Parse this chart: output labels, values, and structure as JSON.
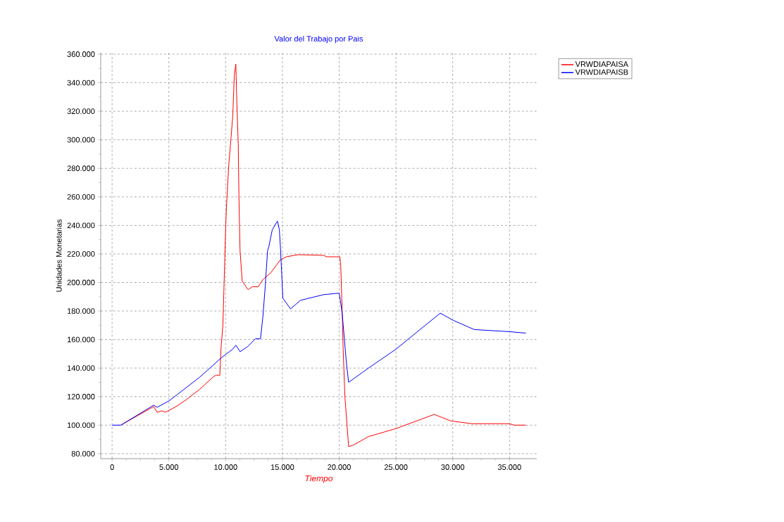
{
  "chart_data": {
    "type": "line",
    "title": "Valor del Trabajo por Pais",
    "xlabel": "Tiempo",
    "ylabel": "Unidades Monetarias",
    "xlim": [
      -1000,
      37400
    ],
    "ylim": [
      76500,
      361000
    ],
    "xticks": [
      0,
      {
        "value": 5000,
        "label": "5.000"
      },
      {
        "value": 10000,
        "label": "10.000"
      },
      {
        "value": 15000,
        "label": "15.000"
      },
      {
        "value": 20000,
        "label": "20.000"
      },
      {
        "value": 25000,
        "label": "25.000"
      },
      {
        "value": 30000,
        "label": "30.000"
      },
      {
        "value": 35000,
        "label": "35.000"
      }
    ],
    "yticks": [
      {
        "value": 80000,
        "label": "80.000"
      },
      {
        "value": 100000,
        "label": "100.000"
      },
      {
        "value": 120000,
        "label": "120.000"
      },
      {
        "value": 140000,
        "label": "140.000"
      },
      {
        "value": 160000,
        "label": "160.000"
      },
      {
        "value": 180000,
        "label": "180.000"
      },
      {
        "value": 200000,
        "label": "200.000"
      },
      {
        "value": 220000,
        "label": "220.000"
      },
      {
        "value": 240000,
        "label": "240.000"
      },
      {
        "value": 260000,
        "label": "260.000"
      },
      {
        "value": 280000,
        "label": "280.000"
      },
      {
        "value": 300000,
        "label": "300.000"
      },
      {
        "value": 320000,
        "label": "320.000"
      },
      {
        "value": 340000,
        "label": "340.000"
      },
      {
        "value": 360000,
        "label": "360.000"
      }
    ],
    "grid": true,
    "legend": "top right",
    "marker": "none",
    "line_style": "solid",
    "series": [
      {
        "name": "VRWDIAPAISA",
        "color": "#ff0000",
        "x": [
          770,
          3660,
          3970,
          4380,
          4700,
          5630,
          6560,
          7700,
          8930,
          9140,
          9490,
          9600,
          9760,
          9970,
          10070,
          10280,
          10480,
          10630,
          10760,
          10900,
          10960,
          11110,
          11170,
          11270,
          11460,
          11970,
          12350,
          12870,
          13280,
          14000,
          14830,
          15350,
          16380,
          18650,
          18860,
          20060,
          20140,
          20270,
          20350,
          20510,
          20830,
          21240,
          22580,
          24960,
          28370,
          29820,
          31680,
          34990,
          35400,
          36440
        ],
        "values": [
          100000,
          113000,
          109000,
          110000,
          109000,
          113000,
          118000,
          125000,
          134000,
          135000,
          135000,
          155000,
          170000,
          230000,
          253000,
          283000,
          302000,
          317000,
          345000,
          353000,
          333000,
          297000,
          260000,
          222000,
          201000,
          195000,
          197000,
          197000,
          202000,
          207000,
          216000,
          218000,
          219500,
          219000,
          218000,
          218000,
          211000,
          178000,
          153000,
          119000,
          85000,
          86000,
          92000,
          97500,
          107500,
          103000,
          101000,
          101000,
          100000,
          100000
        ]
      },
      {
        "name": "VRWDIAPAISB",
        "color": "#0000ff",
        "x": [
          0,
          770,
          3660,
          3970,
          5010,
          7700,
          9660,
          10590,
          10900,
          11270,
          11930,
          12620,
          13070,
          13280,
          13490,
          13690,
          13800,
          14110,
          14560,
          14730,
          14830,
          15040,
          15720,
          16590,
          18650,
          20000,
          20100,
          20270,
          20620,
          20830,
          22580,
          24960,
          28900,
          30030,
          31890,
          34990,
          36440
        ],
        "values": [
          100000,
          100000,
          114000,
          112500,
          117000,
          133500,
          147500,
          153000,
          156000,
          151500,
          155000,
          160500,
          160500,
          176000,
          197500,
          222000,
          225000,
          237000,
          243000,
          237000,
          224000,
          189000,
          181500,
          187500,
          191500,
          192500,
          187500,
          178000,
          145000,
          130000,
          140000,
          153000,
          178500,
          173500,
          167000,
          165500,
          164500
        ]
      }
    ]
  }
}
